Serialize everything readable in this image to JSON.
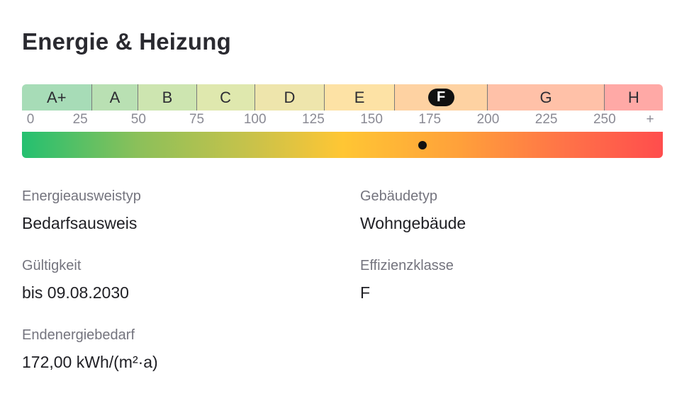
{
  "section": {
    "title": "Energie & Heizung"
  },
  "energy_scale": {
    "classes": [
      {
        "label": "A+",
        "color": "#a7dcb7",
        "active": false
      },
      {
        "label": "A",
        "color": "#b9e0b3",
        "active": false
      },
      {
        "label": "B",
        "color": "#cde5b0",
        "active": false
      },
      {
        "label": "C",
        "color": "#dfe8ae",
        "active": false
      },
      {
        "label": "D",
        "color": "#eee5ac",
        "active": false
      },
      {
        "label": "E",
        "color": "#fde2a5",
        "active": false
      },
      {
        "label": "F",
        "color": "#fed2a2",
        "active": true
      },
      {
        "label": "G",
        "color": "#ffc1a8",
        "active": false
      },
      {
        "label": "H",
        "color": "#ffa9a6",
        "active": false
      }
    ],
    "class_bounds": [
      0,
      30,
      50,
      75,
      100,
      130,
      160,
      200,
      250,
      275
    ],
    "ticks": [
      "0",
      "25",
      "50",
      "75",
      "100",
      "125",
      "150",
      "175",
      "200",
      "225",
      "250",
      "+"
    ],
    "scale_max": 275,
    "current_value": 172,
    "active_class": "F"
  },
  "details": {
    "ausweistyp": {
      "label": "Energieausweistyp",
      "value": "Bedarfsausweis"
    },
    "gebaeudetyp": {
      "label": "Gebäudetyp",
      "value": "Wohngebäude"
    },
    "gueltigkeit": {
      "label": "Gültigkeit",
      "value": "bis 09.08.2030"
    },
    "effizienzklasse": {
      "label": "Effizienzklasse",
      "value": "F"
    },
    "endenergiebedarf": {
      "label": "Endenergiebedarf",
      "value": "172,00 kWh/(m²·a)"
    }
  }
}
